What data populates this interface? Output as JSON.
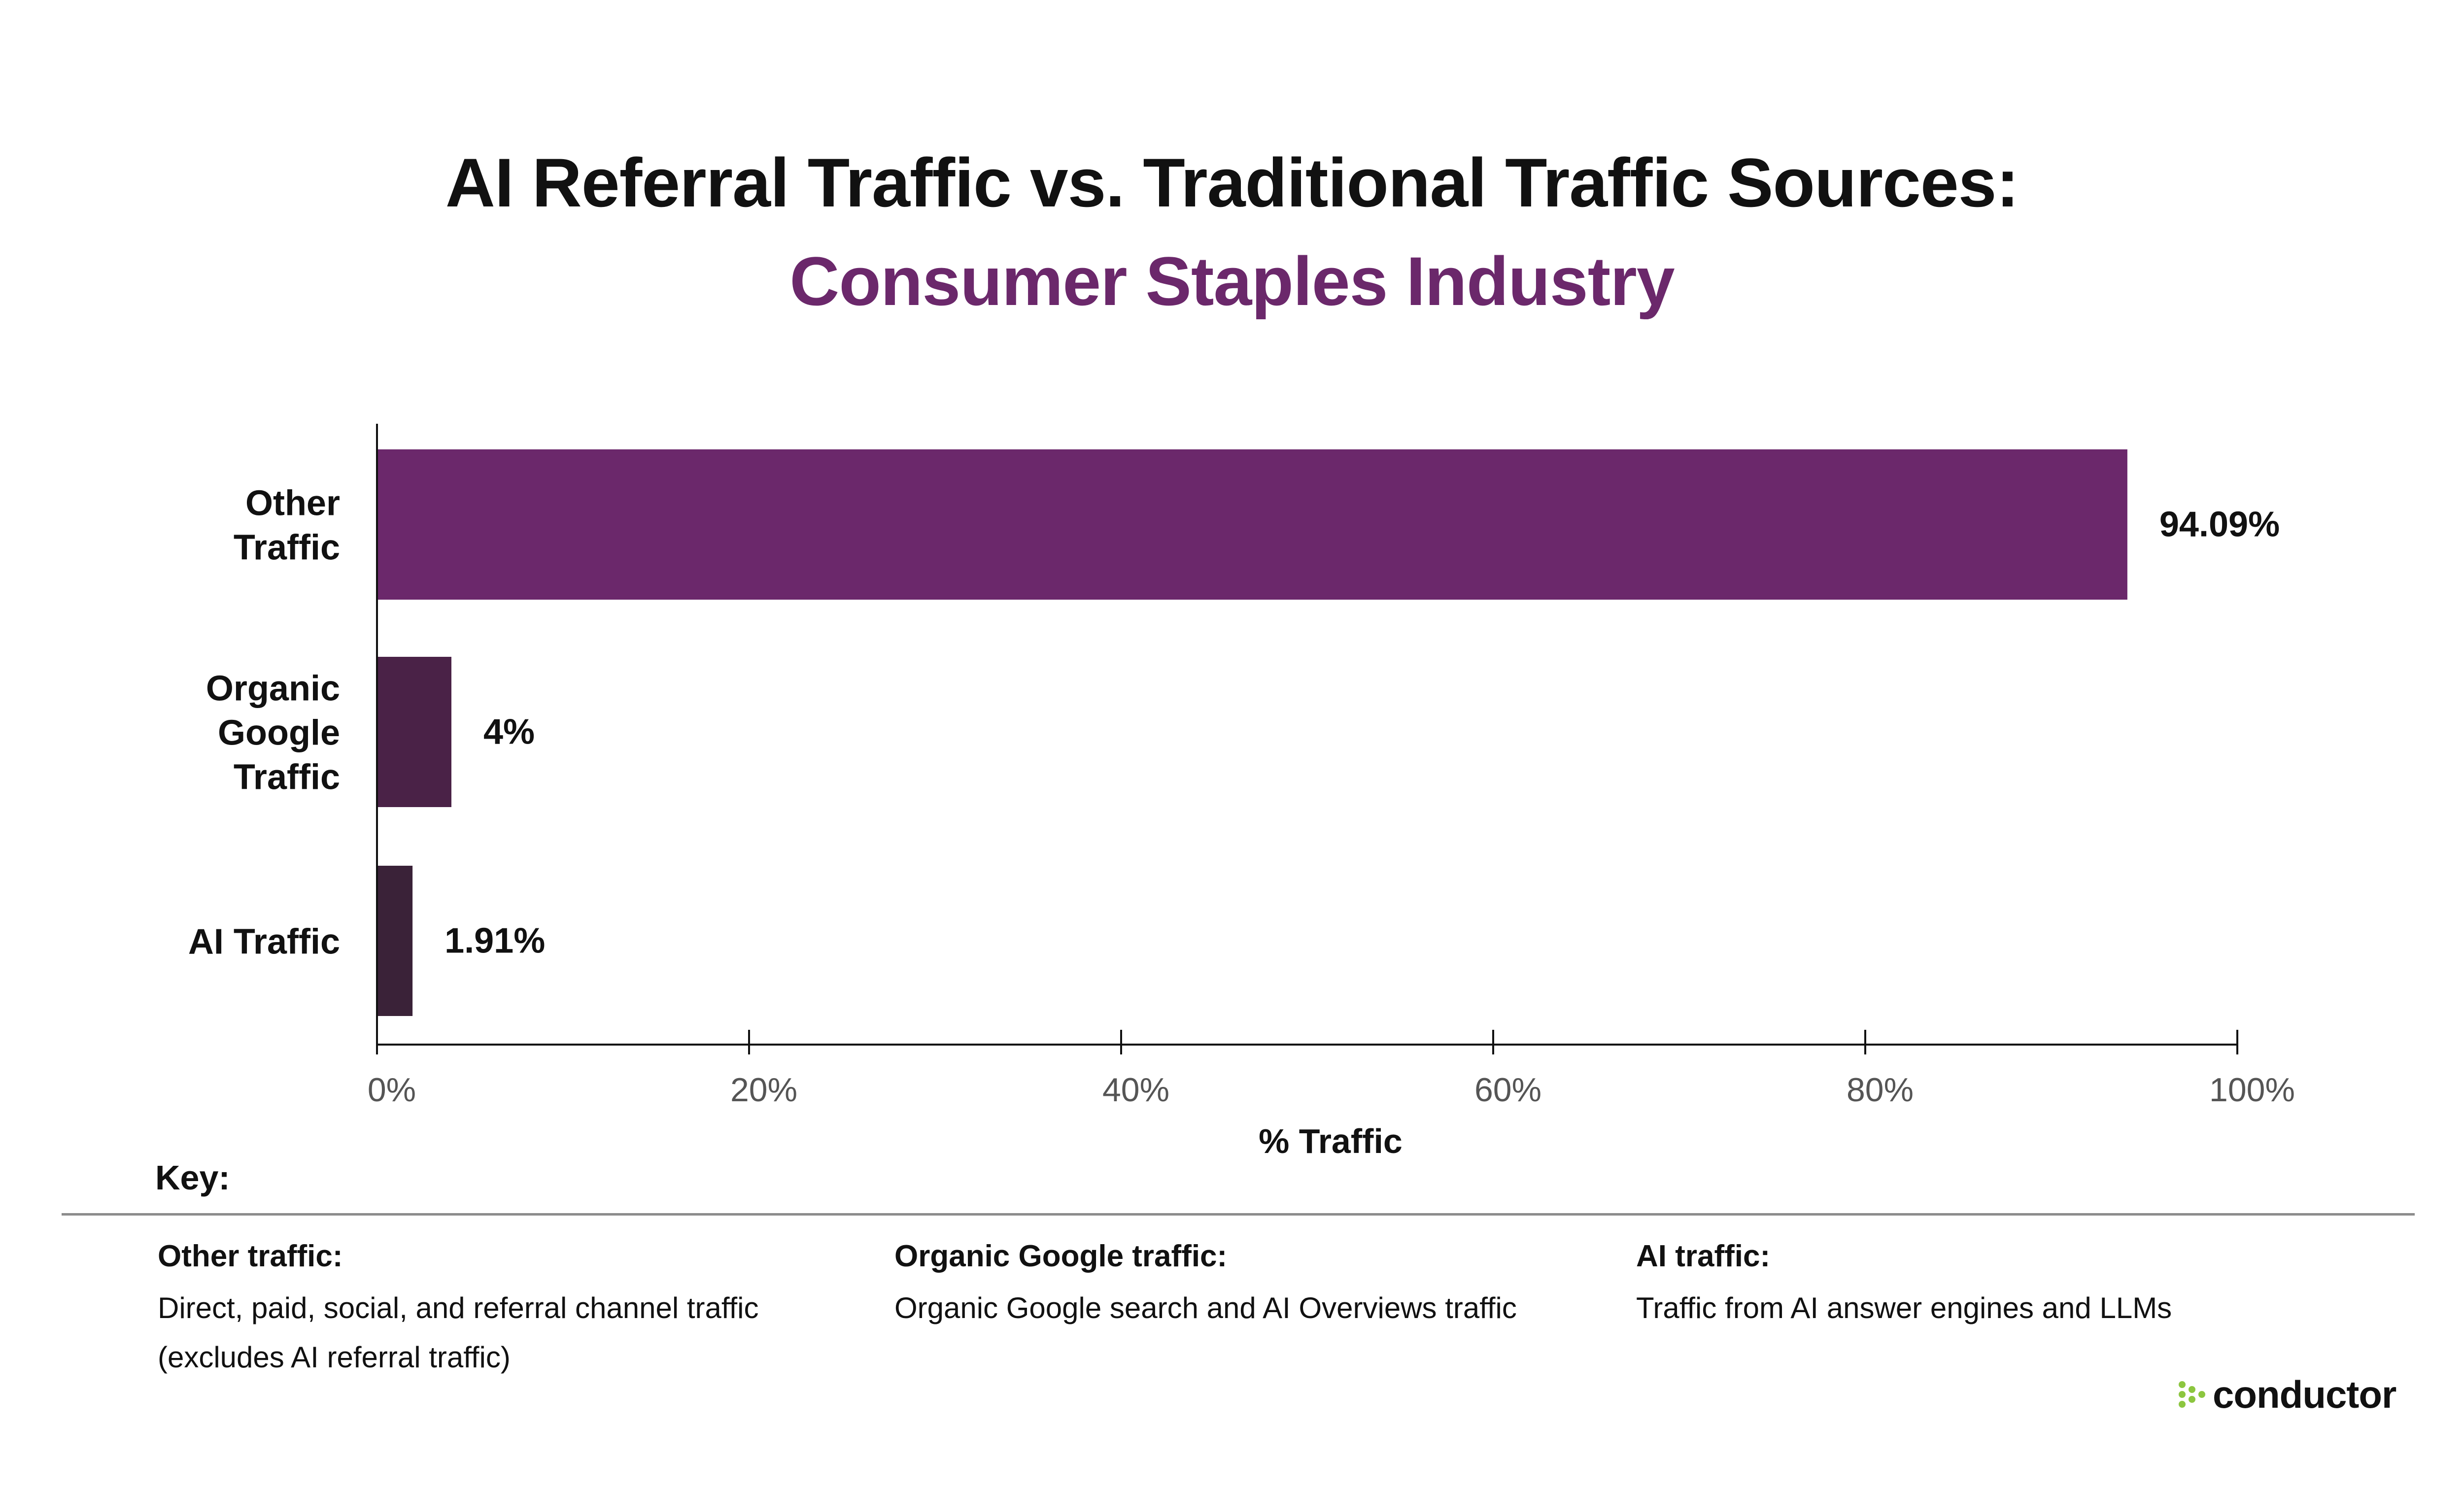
{
  "colors": {
    "accent": "#6b286b",
    "bar_other": "#6b286b",
    "bar_organic": "#4a2247",
    "bar_ai": "#3a2238",
    "logo_green": "#8cc63f"
  },
  "chart_data": {
    "type": "bar",
    "orientation": "horizontal",
    "title": "AI Referral Traffic vs. Traditional Traffic Sources:",
    "subtitle": "Consumer Staples Industry",
    "xlabel": "% Traffic",
    "ylabel": "",
    "xlim": [
      0,
      100
    ],
    "x_ticks": [
      "0%",
      "20%",
      "40%",
      "60%",
      "80%",
      "100%"
    ],
    "x_tick_values": [
      0,
      20,
      40,
      60,
      80,
      100
    ],
    "grid": false,
    "legend": "none",
    "categories": [
      [
        "Other",
        "Traffic"
      ],
      [
        "Organic",
        "Google",
        "Traffic"
      ],
      [
        "AI Traffic"
      ]
    ],
    "values": [
      94.09,
      4,
      1.91
    ],
    "data_labels": [
      "94.09%",
      "4%",
      "1.91%"
    ]
  },
  "key": {
    "heading": "Key:",
    "items": [
      {
        "label": "Other traffic:",
        "description_lines": [
          "Direct, paid, social, and referral channel traffic",
          "(excludes AI referral traffic)"
        ]
      },
      {
        "label": "Organic Google traffic:",
        "description_lines": [
          "Organic Google search and AI Overviews traffic"
        ]
      },
      {
        "label": "AI traffic:",
        "description_lines": [
          "Traffic from AI answer engines and LLMs"
        ]
      }
    ]
  },
  "logo": {
    "text": "conductor",
    "icon": "conductor-dots-icon"
  }
}
